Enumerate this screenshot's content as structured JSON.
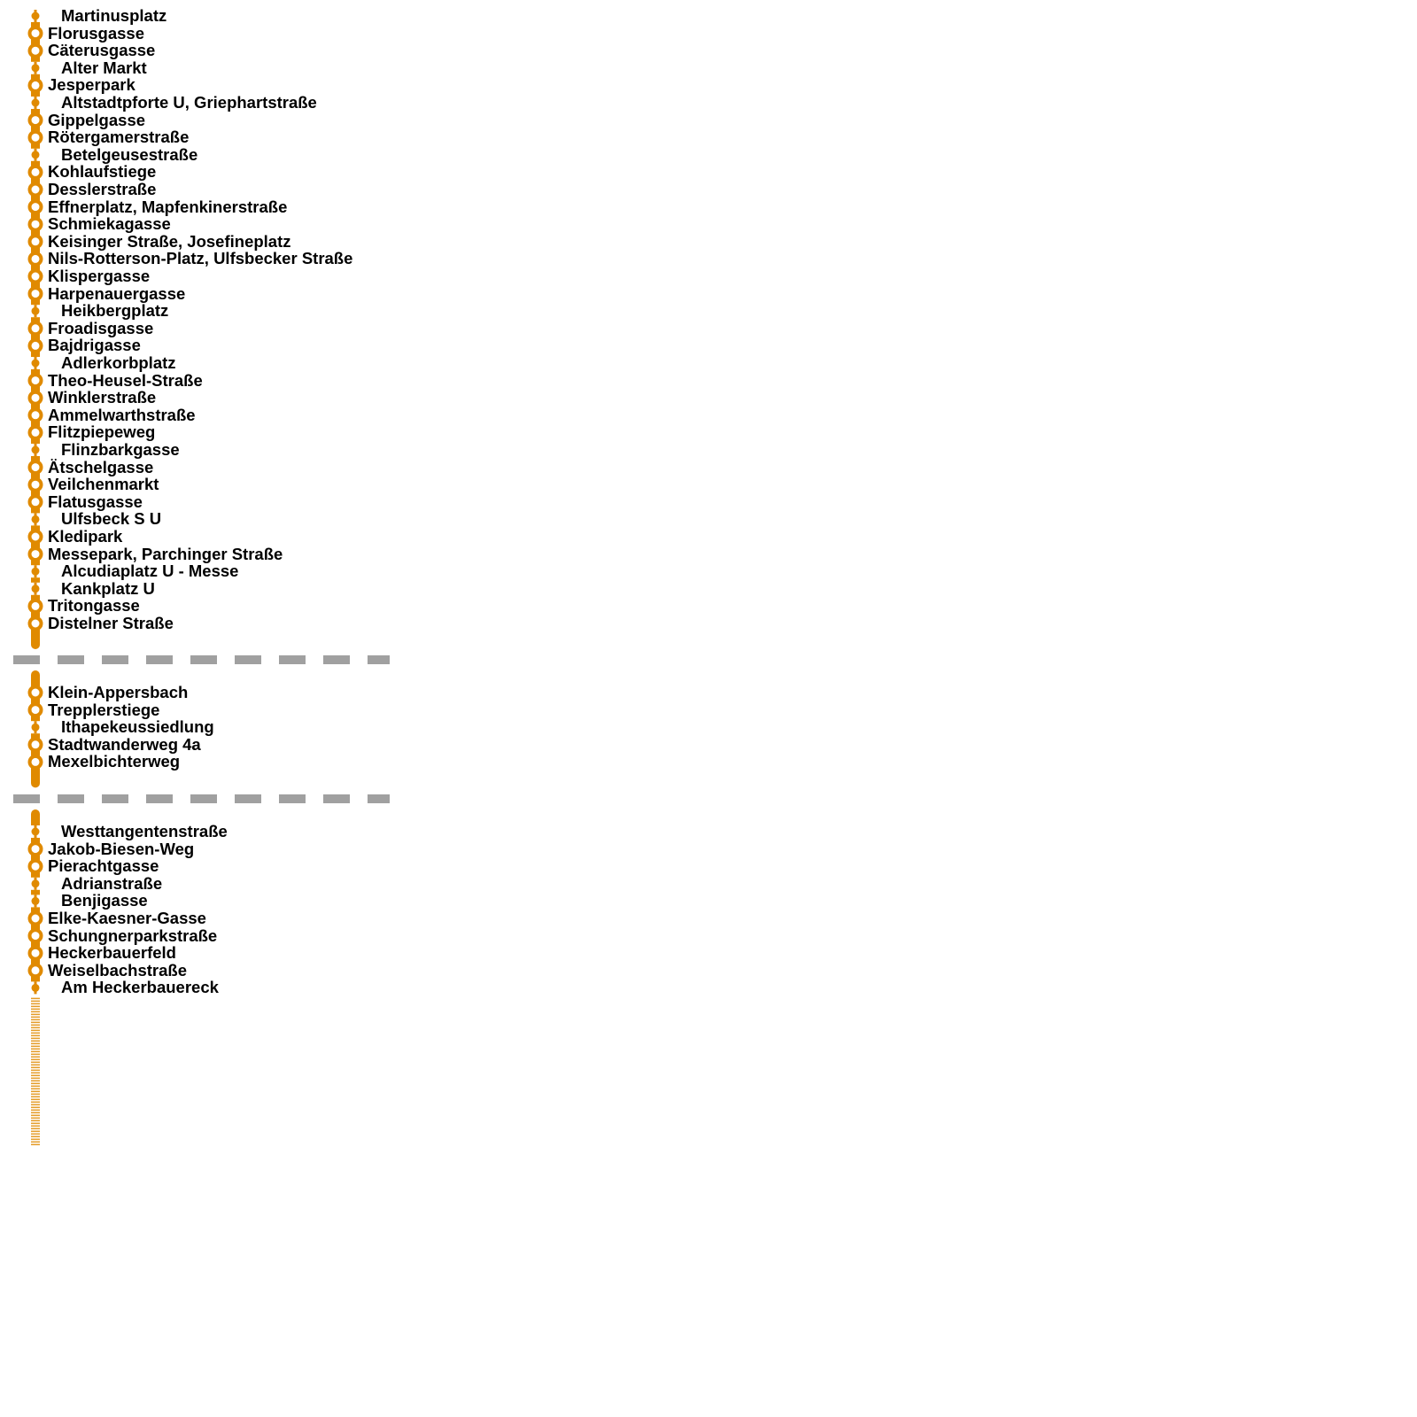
{
  "line_color": "#e08a00",
  "separator_color": "#a0a0a0",
  "sections": [
    {
      "stops": [
        {
          "name": "Martinusplatz",
          "type": "minor"
        },
        {
          "name": "Florusgasse",
          "type": "major"
        },
        {
          "name": "Cäterusgasse",
          "type": "major"
        },
        {
          "name": "Alter Markt",
          "type": "minor"
        },
        {
          "name": "Jesperpark",
          "type": "major"
        },
        {
          "name": "Altstadtpforte U, Griephartstraße",
          "type": "minor"
        },
        {
          "name": "Gippelgasse",
          "type": "major"
        },
        {
          "name": "Rötergamerstraße",
          "type": "major"
        },
        {
          "name": "Betelgeusestraße",
          "type": "minor"
        },
        {
          "name": "Kohlaufstiege",
          "type": "major"
        },
        {
          "name": "Desslerstraße",
          "type": "major"
        },
        {
          "name": "Effnerplatz, Mapfenkinerstraße",
          "type": "major"
        },
        {
          "name": "Schmiekagasse",
          "type": "major"
        },
        {
          "name": "Keisinger Straße, Josefineplatz",
          "type": "major"
        },
        {
          "name": "Nils-Rotterson-Platz, Ulfsbecker Straße",
          "type": "major"
        },
        {
          "name": "Klispergasse",
          "type": "major"
        },
        {
          "name": "Harpenauergasse",
          "type": "major"
        },
        {
          "name": "Heikbergplatz",
          "type": "minor"
        },
        {
          "name": "Froadisgasse",
          "type": "major"
        },
        {
          "name": "Bajdrigasse",
          "type": "major"
        },
        {
          "name": "Adlerkorbplatz",
          "type": "minor"
        },
        {
          "name": "Theo-Heusel-Straße",
          "type": "major"
        },
        {
          "name": "Winklerstraße",
          "type": "major"
        },
        {
          "name": "Ammelwarthstraße",
          "type": "major"
        },
        {
          "name": "Flitzpiepeweg",
          "type": "major"
        },
        {
          "name": "Flinzbarkgasse",
          "type": "minor"
        },
        {
          "name": "Ätschelgasse",
          "type": "major"
        },
        {
          "name": "Veilchenmarkt",
          "type": "major"
        },
        {
          "name": "Flatusgasse",
          "type": "major"
        },
        {
          "name": "Ulfsbeck S U",
          "type": "minor"
        },
        {
          "name": "Kledipark",
          "type": "major"
        },
        {
          "name": "Messepark, Parchinger Straße",
          "type": "major"
        },
        {
          "name": "Alcudiaplatz U - Messe",
          "type": "minor"
        },
        {
          "name": "Kankplatz U",
          "type": "minor"
        },
        {
          "name": "Tritongasse",
          "type": "major"
        },
        {
          "name": "Distelner Straße",
          "type": "major"
        }
      ]
    },
    {
      "stops": [
        {
          "name": "Klein-Appersbach",
          "type": "major"
        },
        {
          "name": "Trepplerstiege",
          "type": "major"
        },
        {
          "name": "Ithapekeussiedlung",
          "type": "minor"
        },
        {
          "name": "Stadtwanderweg 4a",
          "type": "major"
        },
        {
          "name": "Mexelbichterweg",
          "type": "major"
        }
      ]
    },
    {
      "stops": [
        {
          "name": "Westtangentenstraße",
          "type": "minor"
        },
        {
          "name": "Jakob-Biesen-Weg",
          "type": "major"
        },
        {
          "name": "Pierachtgasse",
          "type": "major"
        },
        {
          "name": "Adrianstraße",
          "type": "minor"
        },
        {
          "name": "Benjigasse",
          "type": "minor"
        },
        {
          "name": "Elke-Kaesner-Gasse",
          "type": "major"
        },
        {
          "name": "Schungnerparkstraße",
          "type": "major"
        },
        {
          "name": "Heckerbauerfeld",
          "type": "major"
        },
        {
          "name": "Weiselbachstraße",
          "type": "major"
        },
        {
          "name": "Am Heckerbauereck",
          "type": "minor"
        }
      ]
    }
  ]
}
